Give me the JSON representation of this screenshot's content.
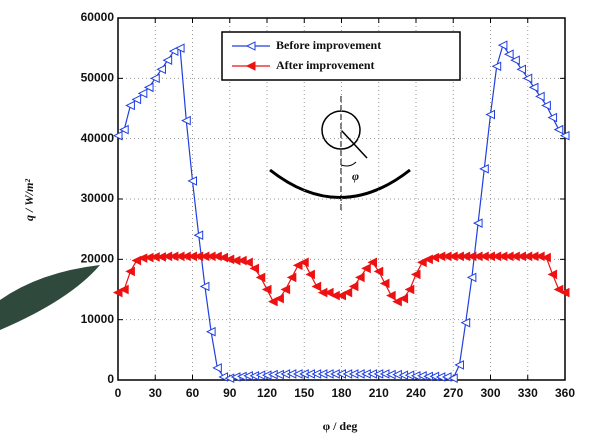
{
  "chart_data": {
    "type": "line",
    "x_label": "φ / deg",
    "y_label": "q / W/m²",
    "inset_label": "φ",
    "x": [
      0,
      5,
      10,
      15,
      20,
      25,
      30,
      35,
      40,
      45,
      50,
      55,
      60,
      65,
      70,
      75,
      80,
      85,
      90,
      95,
      100,
      105,
      110,
      115,
      120,
      125,
      130,
      135,
      140,
      145,
      150,
      155,
      160,
      165,
      170,
      175,
      180,
      185,
      190,
      195,
      200,
      205,
      210,
      215,
      220,
      225,
      230,
      235,
      240,
      245,
      250,
      255,
      260,
      265,
      270,
      275,
      280,
      285,
      290,
      295,
      300,
      305,
      310,
      315,
      320,
      325,
      330,
      335,
      340,
      345,
      350,
      355,
      360
    ],
    "series": [
      {
        "name": "Before improvement",
        "color": "#1f3fe0",
        "marker": "open",
        "values": [
          40500,
          41500,
          45500,
          46500,
          47500,
          48500,
          50000,
          51500,
          53000,
          54500,
          55000,
          43000,
          33000,
          24000,
          15500,
          8000,
          2000,
          500,
          300,
          500,
          600,
          700,
          700,
          800,
          800,
          900,
          900,
          1000,
          1000,
          1000,
          1000,
          1000,
          1000,
          1000,
          1000,
          1000,
          1000,
          1000,
          1000,
          1000,
          1000,
          1000,
          1000,
          1000,
          900,
          900,
          800,
          800,
          700,
          700,
          600,
          600,
          500,
          500,
          300,
          2500,
          9500,
          17000,
          26000,
          35000,
          44000,
          52000,
          55500,
          54000,
          53000,
          51500,
          50000,
          48500,
          47000,
          45500,
          43500,
          41500,
          40500
        ]
      },
      {
        "name": "After improvement",
        "color": "#ee1111",
        "marker": "filled",
        "values": [
          14500,
          15000,
          18000,
          19800,
          20200,
          20300,
          20400,
          20400,
          20500,
          20500,
          20500,
          20500,
          20500,
          20500,
          20500,
          20500,
          20500,
          20300,
          20000,
          19800,
          19800,
          19500,
          18500,
          17000,
          15000,
          13000,
          13500,
          15000,
          17000,
          19000,
          19500,
          17500,
          15500,
          14500,
          14500,
          14000,
          14000,
          14500,
          15500,
          17000,
          18500,
          19500,
          18000,
          16000,
          14000,
          13000,
          13500,
          15000,
          17500,
          19500,
          20000,
          20300,
          20500,
          20500,
          20500,
          20500,
          20500,
          20500,
          20500,
          20500,
          20500,
          20500,
          20500,
          20500,
          20500,
          20500,
          20500,
          20500,
          20500,
          20300,
          17500,
          15000,
          14500
        ]
      }
    ],
    "xlim": [
      0,
      360
    ],
    "xticks": [
      0,
      30,
      60,
      90,
      120,
      150,
      180,
      210,
      240,
      270,
      300,
      330,
      360
    ],
    "ylim": [
      0,
      60000
    ],
    "yticks": [
      0,
      10000,
      20000,
      30000,
      40000,
      50000,
      60000
    ],
    "grid": true
  }
}
